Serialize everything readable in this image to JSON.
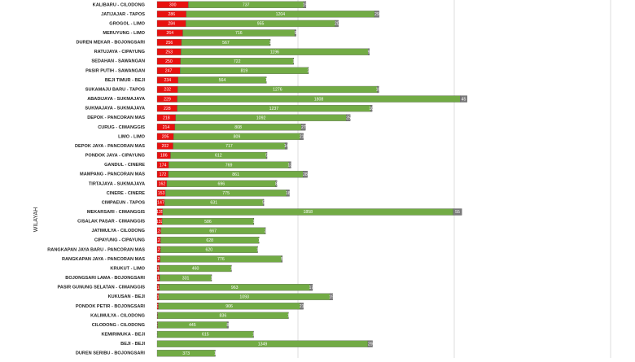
{
  "chart_data": {
    "type": "stacked-barh",
    "y_label": "WILAYAH",
    "categories": [
      "KALIBARU - CILODONG",
      "JATIJAJAR - TAPOS",
      "GROGOL - LIMO",
      "MERUYUNG - LIMO",
      "DUREN MEKAR - BOJONGSARI",
      "RATUJAYA - CIPAYUNG",
      "SEDAHAN - SAWANGAN",
      "PASIR PUTIH - SAWANGAN",
      "BEJI TIMUR - BEJI",
      "SUKAMAJU BARU - TAPOS",
      "ABADIJAYA - SUKMAJAYA",
      "SUKMAJAYA - SUKMAJAYA",
      "DEPOK - PANCORAN MAS",
      "CURUG - CIMANGGIS",
      "LIMO - LIMO",
      "DEPOK JAYA - PANCORAN MAS",
      "PONDOK JAYA - CIPAYUNG",
      "GANDUL - CINERE",
      "MAMPANG - PANCORAN MAS",
      "TIRTAJAYA - SUKMAJAYA",
      "CINERE - CINERE",
      "CIMPAEUN - TAPOS",
      "MEKARSARI - CIMANGGIS",
      "CISALAK PASAR - CIMANGGIS",
      "JATIMULYA - CILODONG",
      "CIPAYUNG - CIPAYUNG",
      "RANGKAPAN JAYA BARU - PANCORAN MAS",
      "RANGKAPAN JAYA - PANCORAN MAS",
      "KRUKUT - LIMO",
      "BOJONGSARI LAMA - BOJONGSARI",
      "PASIR GUNUNG SELATAN - CIMANGGIS",
      "KUKUSAN - BEJI",
      "PONDOK PETIR - BOJONGSARI",
      "KALIMULYA - CILODONG",
      "CILODONG - CILODONG",
      "KEMIRIMUKA - BEJI",
      "BEJI - BEJI",
      "DUREN SERIBU - BOJONGSARI"
    ],
    "series": [
      {
        "color": "#e8110f",
        "values": [
          300,
          286,
          284,
          264,
          256,
          253,
          250,
          247,
          234,
          232,
          229,
          228,
          218,
          214,
          205,
          202,
          186,
          174,
          172,
          162,
          153,
          147,
          135,
          132,
          124,
          123,
          122,
          120,
          115,
          117,
          114,
          111,
          108,
          103,
          103,
          101,
          99,
          98
        ]
      },
      {
        "color": "#72ab45",
        "values": [
          737,
          1204,
          955,
          716,
          567,
          1196,
          722,
          819,
          564,
          1276,
          1808,
          1237,
          1092,
          808,
          809,
          717,
          612,
          769,
          861,
          696,
          775,
          631,
          1858,
          586,
          667,
          628,
          620,
          776,
          460,
          331,
          963,
          1093,
          906,
          836,
          445,
          615,
          1349,
          373
        ]
      },
      {
        "color": "#7a7a7a",
        "values": [
          15,
          29,
          20,
          9,
          1,
          9,
          1,
          2,
          1,
          10,
          45,
          10,
          25,
          27,
          21,
          14,
          5,
          13,
          28,
          8,
          18,
          5,
          55,
          1,
          2,
          1,
          1,
          5,
          1,
          1,
          17,
          19,
          21,
          1,
          8,
          1,
          29,
          1
        ]
      }
    ],
    "xlim": [
      100,
      3150
    ]
  }
}
